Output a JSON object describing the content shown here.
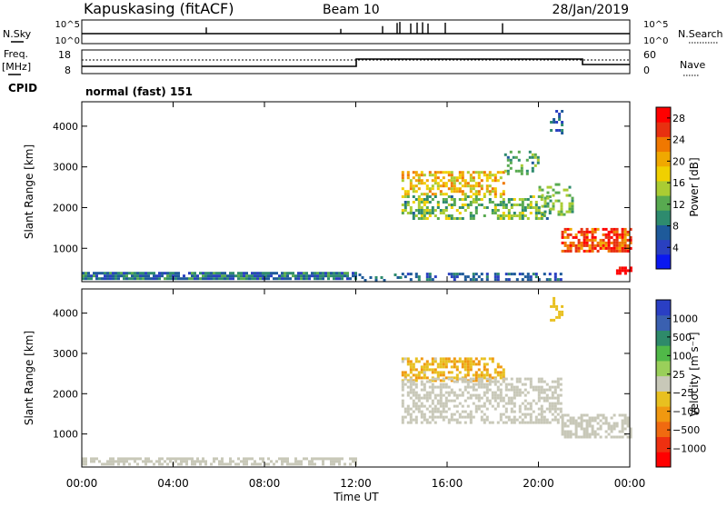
{
  "header": {
    "station": "Kapuskasing (fitACF)",
    "beam": "Beam 10",
    "date": "28/Jan/2019"
  },
  "labels": {
    "nsky": "N.Sky",
    "nsearch": "N.Search",
    "freq_line1": "Freq.",
    "freq_line2": "[MHz]",
    "nave": "Nave",
    "cpid": "CPID",
    "cpid_value": "normal (fast) 151",
    "range_axis": "Slant Range [km]",
    "time_axis": "Time UT",
    "power_axis": "Power [dB]",
    "velocity_axis": "Velocity [m s⁻¹]"
  },
  "noise_panel": {
    "left_ticks": [
      "10^5",
      "10^0"
    ],
    "right_ticks": [
      "10^5",
      "10^0"
    ]
  },
  "freq_panel": {
    "left_ticks": [
      "18",
      "8"
    ],
    "right_ticks": [
      "60",
      "0"
    ]
  },
  "colors": {
    "power": [
      "#0a18f0",
      "#2a40c0",
      "#1e5a9a",
      "#2e8b6e",
      "#58aa50",
      "#aacc33",
      "#f0d000",
      "#f0a800",
      "#f07800",
      "#e83010",
      "#ff0000"
    ],
    "velocity": [
      "#2a3fc4",
      "#3a60b0",
      "#2e8a6a",
      "#50b848",
      "#9acf5a",
      "#c8c8b8",
      "#e8c020",
      "#f09810",
      "#f06a10",
      "#ee3010",
      "#ff0000"
    ]
  },
  "chart_data": [
    {
      "type": "heatmap",
      "name": "power",
      "xlabel": "Time UT",
      "ylabel": "Slant Range [km]",
      "xticks": [
        "00:00",
        "04:00",
        "08:00",
        "12:00",
        "16:00",
        "20:00",
        "00:00"
      ],
      "yticks": [
        1000,
        2000,
        3000,
        4000
      ],
      "xlim": [
        0,
        24
      ],
      "ylim": [
        180,
        4600
      ],
      "colorbar": {
        "label": "Power [dB]",
        "ticks": [
          4,
          8,
          12,
          16,
          20,
          24,
          28
        ],
        "range": [
          0,
          30
        ]
      },
      "regions": [
        {
          "t": [
            0,
            12
          ],
          "r": [
            220,
            420
          ],
          "level": [
            4,
            12
          ],
          "density": 0.85
        },
        {
          "t": [
            12,
            14
          ],
          "r": [
            220,
            380
          ],
          "level": [
            4,
            10
          ],
          "density": 0.3
        },
        {
          "t": [
            14,
            21
          ],
          "r": [
            240,
            400
          ],
          "level": [
            4,
            10
          ],
          "density": 0.4
        },
        {
          "t": [
            14,
            18.5
          ],
          "r": [
            2300,
            2900
          ],
          "level": [
            14,
            24
          ],
          "density": 0.55
        },
        {
          "t": [
            14,
            20.5
          ],
          "r": [
            1700,
            2300
          ],
          "level": [
            8,
            18
          ],
          "density": 0.45
        },
        {
          "t": [
            18.5,
            20
          ],
          "r": [
            2800,
            3400
          ],
          "level": [
            8,
            14
          ],
          "density": 0.25
        },
        {
          "t": [
            20,
            21.5
          ],
          "r": [
            1800,
            2600
          ],
          "level": [
            10,
            16
          ],
          "density": 0.35
        },
        {
          "t": [
            21,
            24
          ],
          "r": [
            900,
            1500
          ],
          "level": [
            20,
            30
          ],
          "density": 0.75
        },
        {
          "t": [
            20.5,
            21
          ],
          "r": [
            3800,
            4400
          ],
          "level": [
            4,
            10
          ],
          "density": 0.35
        },
        {
          "t": [
            23.4,
            24
          ],
          "r": [
            350,
            550
          ],
          "level": [
            26,
            30
          ],
          "density": 0.7
        }
      ]
    },
    {
      "type": "heatmap",
      "name": "velocity",
      "xlabel": "Time UT",
      "ylabel": "Slant Range [km]",
      "xticks": [
        "00:00",
        "04:00",
        "08:00",
        "12:00",
        "16:00",
        "20:00",
        "00:00"
      ],
      "yticks": [
        1000,
        2000,
        3000,
        4000
      ],
      "xlim": [
        0,
        24
      ],
      "ylim": [
        180,
        4600
      ],
      "colorbar": {
        "label": "Velocity [m s⁻¹]",
        "ticks": [
          "1000",
          "500",
          "100",
          "25",
          "−25",
          "−100",
          "−500",
          "−1000"
        ],
        "range": [
          -1200,
          1200
        ]
      },
      "regions": [
        {
          "t": [
            0,
            12
          ],
          "r": [
            220,
            420
          ],
          "level": [
            -100,
            100
          ],
          "density": 0.6
        },
        {
          "t": [
            14,
            18.5
          ],
          "r": [
            2300,
            2900
          ],
          "level": [
            -500,
            -100
          ],
          "density": 0.55
        },
        {
          "t": [
            14,
            21
          ],
          "r": [
            1300,
            2400
          ],
          "level": [
            -24,
            24
          ],
          "density": 0.5
        },
        {
          "t": [
            21,
            24
          ],
          "r": [
            900,
            1500
          ],
          "level": [
            -24,
            24
          ],
          "density": 0.6
        },
        {
          "t": [
            20.5,
            21
          ],
          "r": [
            3800,
            4400
          ],
          "level": [
            -300,
            -100
          ],
          "density": 0.3
        }
      ]
    },
    {
      "type": "line",
      "name": "noise",
      "series": [
        {
          "name": "N.Sky",
          "x": [
            0,
            24
          ],
          "y": [
            2.2,
            2.2
          ]
        },
        {
          "name": "N.Search",
          "x": [
            0,
            24
          ],
          "y": [
            2.0,
            2.0
          ]
        }
      ]
    },
    {
      "type": "line",
      "name": "frequency",
      "series": [
        {
          "name": "Freq.",
          "x": [
            0,
            12,
            12,
            22,
            22,
            24
          ],
          "y": [
            10,
            10,
            13,
            13,
            11,
            11
          ]
        },
        {
          "name": "Nave",
          "x": [
            0,
            24
          ],
          "y": [
            40,
            40
          ]
        }
      ]
    }
  ]
}
